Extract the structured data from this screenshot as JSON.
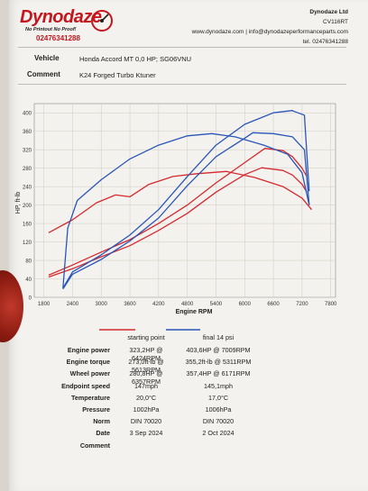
{
  "header": {
    "logo_name": "Dynodaze",
    "logo_slogan": "No Printout No Proof!",
    "logo_phone": "02476341288",
    "company": "Dynodaze Ltd",
    "postcode": "CV116RT",
    "websites": "www.dynodaze.com | info@dynodazeperformanceparts.com",
    "telephone": "tel. 02476341288"
  },
  "vehicle": {
    "label": "Vehicle",
    "value": "Honda Accord MT 0,0 HP; SG06VNU"
  },
  "comment_top": {
    "label": "Comment",
    "value": "K24 Forged Turbo Ktuner"
  },
  "chart_data": {
    "type": "line",
    "xlabel": "Engine RPM",
    "ylabel": "HP, ft-lb",
    "x_ticks": [
      1800,
      2400,
      3000,
      3600,
      4200,
      4800,
      5400,
      6000,
      6600,
      7200,
      7800
    ],
    "y_ticks": [
      0,
      40,
      80,
      120,
      160,
      200,
      240,
      280,
      320,
      360,
      400
    ],
    "xlim": [
      1600,
      7900
    ],
    "ylim": [
      0,
      420
    ],
    "grid": true,
    "colors": {
      "starting": "#d42a2e",
      "final": "#2a56b8"
    },
    "series": [
      {
        "name": "starting point",
        "kind": "engine power",
        "color": "#d42a2e",
        "x": [
          1900,
          2400,
          3000,
          3600,
          4200,
          4800,
          5400,
          6000,
          6424,
          6800,
          7000,
          7200,
          7300
        ],
        "y": [
          48,
          70,
          98,
          125,
          160,
          200,
          248,
          292,
          323,
          318,
          305,
          280,
          262
        ]
      },
      {
        "name": "starting point",
        "kind": "wheel power",
        "color": "#d42a2e",
        "x": [
          1900,
          2400,
          3000,
          3600,
          4200,
          4800,
          5400,
          6000,
          6357,
          6800,
          7000,
          7200,
          7300
        ],
        "y": [
          44,
          62,
          88,
          112,
          145,
          182,
          228,
          266,
          281,
          275,
          265,
          245,
          228
        ]
      },
      {
        "name": "starting point",
        "kind": "engine torque",
        "color": "#d42a2e",
        "x": [
          1900,
          2400,
          2900,
          3300,
          3600,
          4000,
          4500,
          5000,
          5613,
          6200,
          6800,
          7200,
          7400
        ],
        "y": [
          140,
          168,
          205,
          222,
          218,
          245,
          262,
          268,
          273,
          260,
          240,
          215,
          190
        ]
      },
      {
        "name": "final 14 psi",
        "kind": "engine power",
        "color": "#2a56b8",
        "x": [
          2200,
          2400,
          3000,
          3600,
          4200,
          4800,
          5400,
          6000,
          6600,
          7000,
          7009,
          7250,
          7350
        ],
        "y": [
          20,
          55,
          92,
          135,
          190,
          262,
          330,
          375,
          400,
          405,
          404,
          395,
          230
        ]
      },
      {
        "name": "final 14 psi",
        "kind": "wheel power",
        "color": "#2a56b8",
        "x": [
          2200,
          2400,
          3000,
          3600,
          4200,
          4800,
          5400,
          6000,
          6171,
          6600,
          7000,
          7250,
          7350
        ],
        "y": [
          18,
          50,
          82,
          122,
          172,
          242,
          305,
          345,
          357,
          355,
          348,
          320,
          200
        ]
      },
      {
        "name": "final 14 psi",
        "kind": "engine torque",
        "color": "#2a56b8",
        "x": [
          2200,
          2300,
          2500,
          3000,
          3600,
          4200,
          4800,
          5311,
          5800,
          6400,
          6900,
          7200,
          7350
        ],
        "y": [
          20,
          150,
          210,
          255,
          300,
          330,
          350,
          355,
          348,
          330,
          310,
          270,
          200
        ]
      }
    ]
  },
  "summary": {
    "legend": {
      "a": "starting point",
      "b": "final 14 psi"
    },
    "rows": [
      {
        "label": "Engine power",
        "a": "323,2HP @ 6424RPM",
        "b": "403,6HP @ 7009RPM"
      },
      {
        "label": "Engine torque",
        "a": "273,0ft-lb @ 5613RPM",
        "b": "355,2ft-lb @ 5311RPM"
      },
      {
        "label": "Wheel power",
        "a": "280,8HP @ 6357RPM",
        "b": "357,4HP @ 6171RPM"
      },
      {
        "label": "Endpoint speed",
        "a": "147mph",
        "b": "145,1mph"
      },
      {
        "label": "Temperature",
        "a": "20,0°C",
        "b": "17,0°C"
      },
      {
        "label": "Pressure",
        "a": "1002hPa",
        "b": "1006hPa"
      },
      {
        "label": "Norm",
        "a": "DIN 70020",
        "b": "DIN 70020"
      },
      {
        "label": "Date",
        "a": "3 Sep 2024",
        "b": "2 Oct 2024"
      }
    ],
    "comment_label": "Comment"
  }
}
